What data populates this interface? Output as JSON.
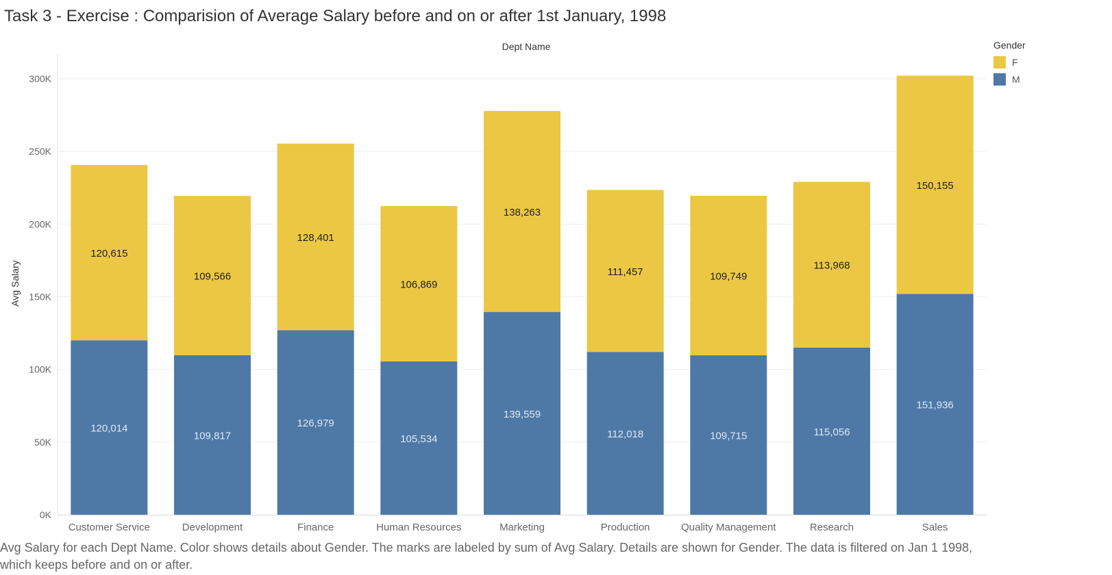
{
  "title": "Task 3 - Exercise : Comparision of Average Salary  before and on or after 1st January, 1998",
  "caption": "Avg Salary for each Dept Name.  Color shows details about Gender.  The marks are labeled by sum of Avg Salary.  Details are shown for Gender. The data is filtered on Jan 1 1998, which keeps before and on or after.",
  "legend": {
    "title": "Gender",
    "items": [
      {
        "label": "F",
        "color": "#EBC744"
      },
      {
        "label": "M",
        "color": "#4E79A7"
      }
    ]
  },
  "chart_data": {
    "type": "bar",
    "stacked": true,
    "xlabel": "Dept Name",
    "ylabel": "Avg Salary",
    "ylim": [
      0,
      300000
    ],
    "yticks": [
      "0K",
      "50K",
      "100K",
      "150K",
      "200K",
      "250K",
      "300K"
    ],
    "ytick_values": [
      0,
      50000,
      100000,
      150000,
      200000,
      250000,
      300000
    ],
    "grid": true,
    "legend_position": "top-right",
    "categories": [
      "Customer Service",
      "Development",
      "Finance",
      "Human Resources",
      "Marketing",
      "Production",
      "Quality Management",
      "Research",
      "Sales"
    ],
    "series": [
      {
        "name": "M",
        "color": "#4E79A7",
        "label_color": "#dfe7f1",
        "values": [
          120014,
          109817,
          126979,
          105534,
          139559,
          112018,
          109715,
          115056,
          151936
        ],
        "labels": [
          "120,014",
          "109,817",
          "126,979",
          "105,534",
          "139,559",
          "112,018",
          "109,715",
          "115,056",
          "151,936"
        ]
      },
      {
        "name": "F",
        "color": "#EBC744",
        "label_color": "#222222",
        "values": [
          120615,
          109566,
          128401,
          106869,
          138263,
          111457,
          109749,
          113968,
          150155
        ],
        "labels": [
          "120,615",
          "109,566",
          "128,401",
          "106,869",
          "138,263",
          "111,457",
          "109,749",
          "113,968",
          "150,155"
        ]
      }
    ]
  }
}
